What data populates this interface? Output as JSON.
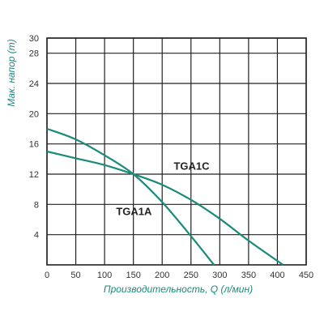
{
  "chart_data": {
    "type": "line",
    "xlabel": "Производительность, Q (л/мин)",
    "ylabel": "Мак. напор (m)",
    "xlim": [
      0,
      450
    ],
    "ylim": [
      0,
      30
    ],
    "xticks": [
      "0",
      "50",
      "100",
      "150",
      "200",
      "250",
      "300",
      "350",
      "400",
      "450"
    ],
    "yticks": [
      "4",
      "8",
      "12",
      "16",
      "20",
      "24",
      "28",
      "30"
    ],
    "grid": true,
    "series": [
      {
        "name": "TGA1A",
        "x": [
          0,
          50,
          100,
          150,
          200,
          250,
          290
        ],
        "y": [
          18,
          16.6,
          14.5,
          12,
          8.3,
          3.8,
          0
        ]
      },
      {
        "name": "TGA1C",
        "x": [
          0,
          50,
          100,
          150,
          200,
          250,
          300,
          350,
          410
        ],
        "y": [
          15,
          14.1,
          13.2,
          12,
          10.6,
          8.6,
          6.1,
          3.2,
          0
        ]
      }
    ],
    "colors": {
      "curve": "#1a8a7a",
      "axis_title": "#1a8a7a",
      "grid": "#222222"
    }
  }
}
